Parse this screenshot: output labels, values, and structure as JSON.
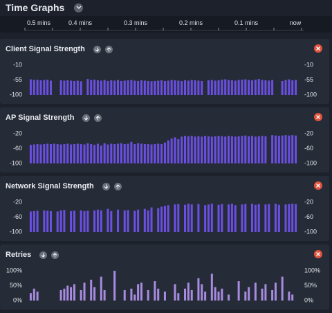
{
  "header": {
    "title": "Time Graphs"
  },
  "time_axis": {
    "labels": [
      "0.5 mins",
      "0.4 mins",
      "0.3 mins",
      "0.2 mins",
      "0.1 mins",
      "now"
    ]
  },
  "chart_data": [
    {
      "type": "bar",
      "title": "Client Signal Strength",
      "color": "#6b4fe3",
      "ylim": [
        -100,
        -10
      ],
      "yticks": [
        -10,
        -55,
        -100
      ],
      "values": [
        -53,
        -55,
        -54,
        -56,
        -55,
        -54,
        -57,
        null,
        null,
        -56,
        -57,
        -56,
        -57,
        -58,
        -57,
        -59,
        null,
        -52,
        -55,
        -54,
        -56,
        -57,
        -55,
        -58,
        -56,
        -57,
        -55,
        -58,
        -57,
        -56,
        -55,
        -57,
        -58,
        -56,
        -57,
        -58,
        -59,
        -58,
        -57,
        -56,
        -58,
        -57,
        -55,
        -56,
        -57,
        -58,
        -56,
        -57,
        -55,
        -56,
        -57,
        -58,
        null,
        -56,
        -55,
        -57,
        -56,
        -54,
        -53,
        -55,
        -56,
        -57,
        -55,
        -54,
        -53,
        -55,
        -56,
        -54,
        -52,
        -55,
        -56,
        -57,
        -55,
        null,
        null,
        -58,
        -55,
        -53,
        -56,
        -55
      ]
    },
    {
      "type": "bar",
      "title": "AP Signal Strength",
      "color": "#6b4fe3",
      "ylim": [
        -100,
        -20
      ],
      "yticks": [
        -20,
        -60,
        -100
      ],
      "values": [
        -50,
        -49,
        -48,
        -49,
        -48,
        -47,
        -48,
        -47,
        -48,
        -49,
        -48,
        -47,
        -49,
        -48,
        -47,
        -48,
        -49,
        -46,
        -48,
        -50,
        -47,
        -52,
        -46,
        -49,
        -47,
        -48,
        -47,
        -46,
        -48,
        -47,
        -42,
        -48,
        -46,
        -47,
        -48,
        -48,
        -49,
        -48,
        -47,
        -48,
        -44,
        -38,
        -33,
        -30,
        -35,
        -28,
        -26,
        -27,
        -26,
        -28,
        -27,
        -28,
        -26,
        -27,
        -28,
        -27,
        -26,
        -27,
        -28,
        -26,
        -27,
        -28,
        -27,
        -26,
        -25,
        -27,
        -26,
        -28,
        -27,
        -26,
        -27,
        null,
        -24,
        -25,
        -26,
        -25,
        -24,
        -25,
        -24,
        -25
      ]
    },
    {
      "type": "bar",
      "title": "Network Signal Strength",
      "color": "#6b4fe3",
      "ylim": [
        -100,
        -20
      ],
      "yticks": [
        -20,
        -60,
        -100
      ],
      "values": [
        -45,
        -44,
        -43,
        null,
        -42,
        -43,
        -44,
        null,
        -45,
        -42,
        -41,
        null,
        -44,
        -43,
        null,
        -42,
        -44,
        -43,
        null,
        -42,
        -40,
        -42,
        null,
        -38,
        -44,
        null,
        -40,
        null,
        -42,
        -41,
        null,
        -43,
        -40,
        null,
        -38,
        -42,
        -34,
        null,
        -36,
        -32,
        -30,
        -28,
        null,
        -26,
        -25,
        null,
        -27,
        -24,
        -26,
        null,
        -25,
        null,
        -28,
        -26,
        -24,
        null,
        -27,
        -25,
        null,
        -26,
        -24,
        -28,
        null,
        -26,
        -25,
        null,
        -24,
        -27,
        -25,
        null,
        -26,
        -25,
        null,
        -24,
        -27,
        null,
        -26,
        -25,
        -24,
        -25
      ]
    },
    {
      "type": "bar",
      "title": "Retries",
      "color": "#a78be0",
      "ylim": [
        0,
        100
      ],
      "yticks": [
        {
          "value": 100,
          "label": "100%"
        },
        {
          "value": 50,
          "label": "50%"
        },
        {
          "value": 0,
          "label": "0%"
        }
      ],
      "values": [
        25,
        40,
        30,
        0,
        0,
        0,
        0,
        0,
        0,
        35,
        40,
        50,
        45,
        55,
        0,
        35,
        60,
        0,
        70,
        45,
        0,
        80,
        35,
        0,
        0,
        100,
        0,
        0,
        35,
        0,
        40,
        20,
        55,
        60,
        0,
        35,
        0,
        65,
        40,
        0,
        30,
        0,
        0,
        55,
        25,
        0,
        40,
        60,
        35,
        0,
        75,
        55,
        30,
        0,
        90,
        45,
        30,
        40,
        0,
        20,
        0,
        0,
        65,
        0,
        30,
        45,
        0,
        60,
        0,
        40,
        55,
        0,
        35,
        60,
        0,
        80,
        0,
        30,
        20,
        0
      ]
    }
  ]
}
